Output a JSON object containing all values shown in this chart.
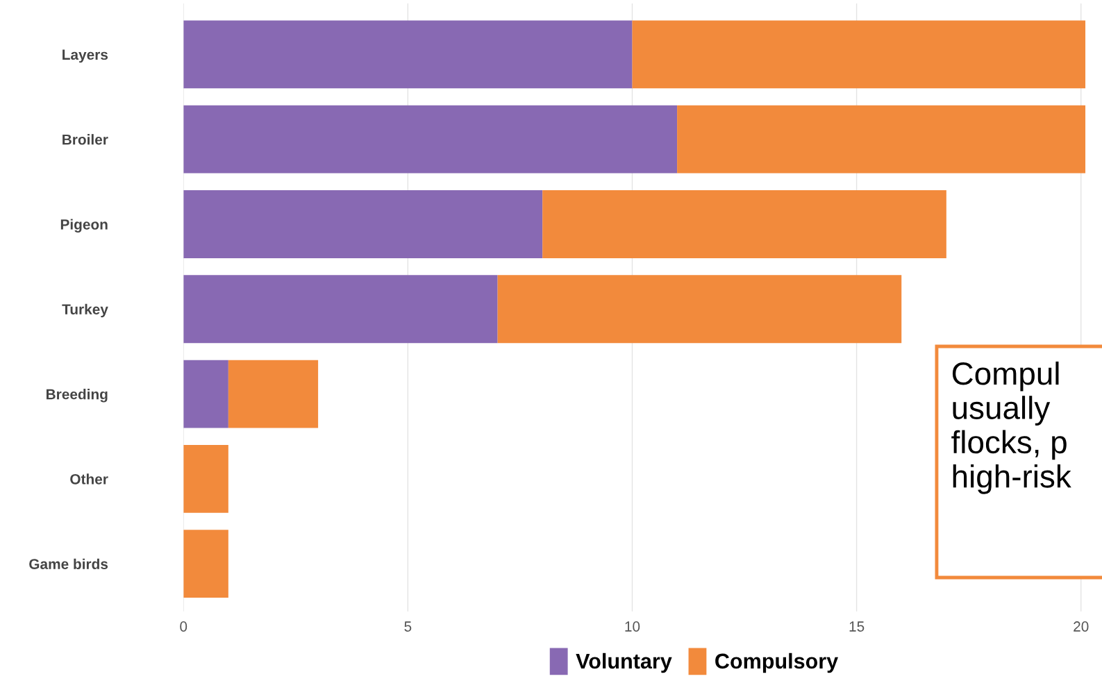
{
  "chart_data": {
    "type": "bar",
    "orientation": "horizontal",
    "stacked": true,
    "categories": [
      "Layers",
      "Broiler",
      "Pigeon",
      "Turkey",
      "Breeding",
      "Other",
      "Game birds"
    ],
    "series": [
      {
        "name": "Voluntary",
        "color": "#8869b3",
        "values": [
          10,
          11,
          8,
          7,
          1,
          0,
          0
        ]
      },
      {
        "name": "Compulsory",
        "color": "#f28a3c",
        "values": [
          10.1,
          9.1,
          9,
          9,
          2,
          1,
          1
        ]
      }
    ],
    "xlim": [
      0,
      20.1
    ],
    "xticks": [
      0,
      5,
      10,
      15,
      20
    ],
    "grid": "x",
    "legend": "bottom",
    "annotations": [
      "Compul\nusually\nflocks, p\nhigh-risk"
    ]
  }
}
